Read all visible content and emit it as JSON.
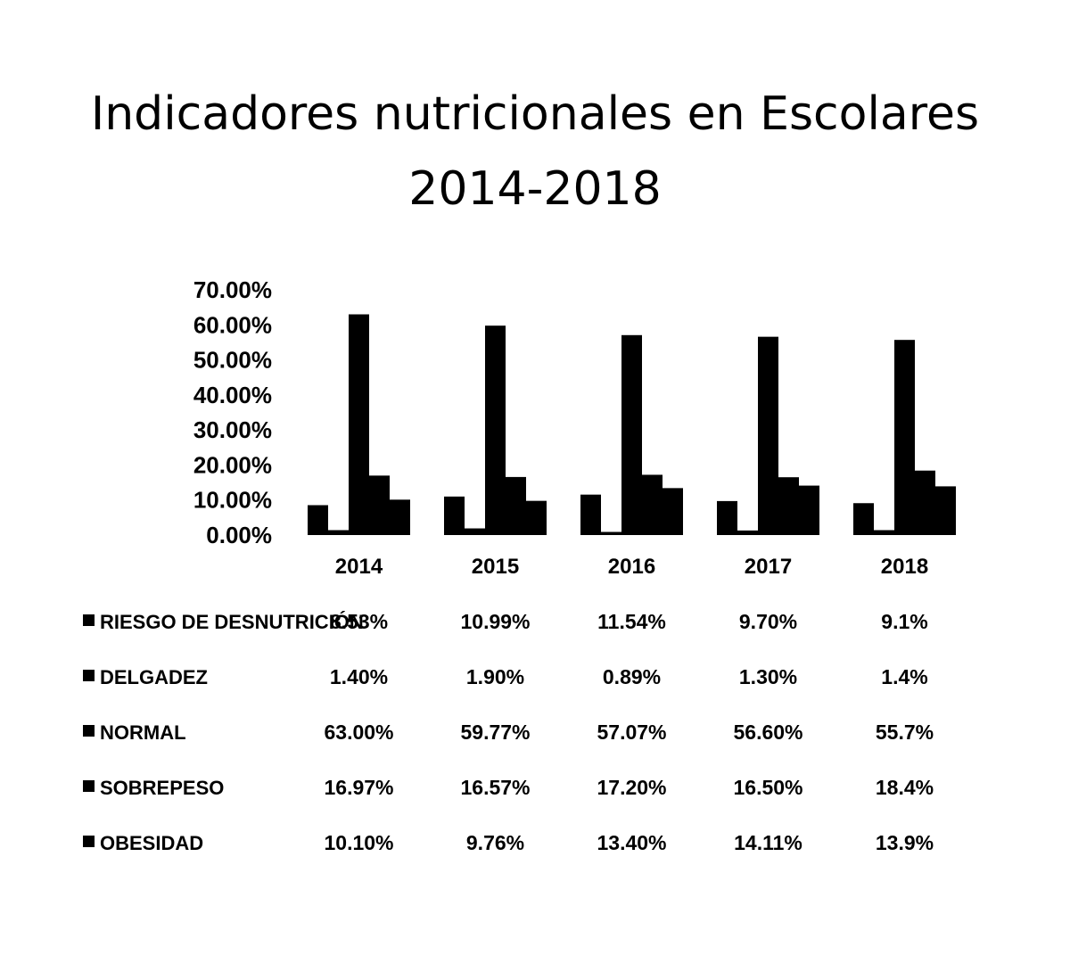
{
  "chart_data": {
    "type": "bar",
    "title": "Indicadores nutricionales en Escolares",
    "subtitle": "2014-2018",
    "categories": [
      "2014",
      "2015",
      "2016",
      "2017",
      "2018"
    ],
    "ylim": [
      0,
      70
    ],
    "yticks": [
      "0.00%",
      "10.00%",
      "20.00%",
      "30.00%",
      "40.00%",
      "50.00%",
      "60.00%",
      "70.00%"
    ],
    "grid": false,
    "legend": "table-below",
    "series": [
      {
        "name": "RIESGO DE DESNUTRICIÓN",
        "values": [
          8.53,
          10.99,
          11.54,
          9.7,
          9.1
        ],
        "labels": [
          "8.53%",
          "10.99%",
          "11.54%",
          "9.70%",
          "9.1%"
        ]
      },
      {
        "name": "DELGADEZ",
        "values": [
          1.4,
          1.9,
          0.89,
          1.3,
          1.4
        ],
        "labels": [
          "1.40%",
          "1.90%",
          "0.89%",
          "1.30%",
          "1.4%"
        ]
      },
      {
        "name": "NORMAL",
        "values": [
          63.0,
          59.77,
          57.07,
          56.6,
          55.7
        ],
        "labels": [
          "63.00%",
          "59.77%",
          "57.07%",
          "56.60%",
          "55.7%"
        ]
      },
      {
        "name": "SOBREPESO",
        "values": [
          16.97,
          16.57,
          17.2,
          16.5,
          18.4
        ],
        "labels": [
          "16.97%",
          "16.57%",
          "17.20%",
          "16.50%",
          "18.4%"
        ]
      },
      {
        "name": "OBESIDAD",
        "values": [
          10.1,
          9.76,
          13.4,
          14.11,
          13.9
        ],
        "labels": [
          "10.10%",
          "9.76%",
          "13.40%",
          "14.11%",
          "13.9%"
        ]
      }
    ],
    "colors": {
      "bars": "#000000",
      "text": "#000000",
      "background": "#ffffff"
    }
  }
}
